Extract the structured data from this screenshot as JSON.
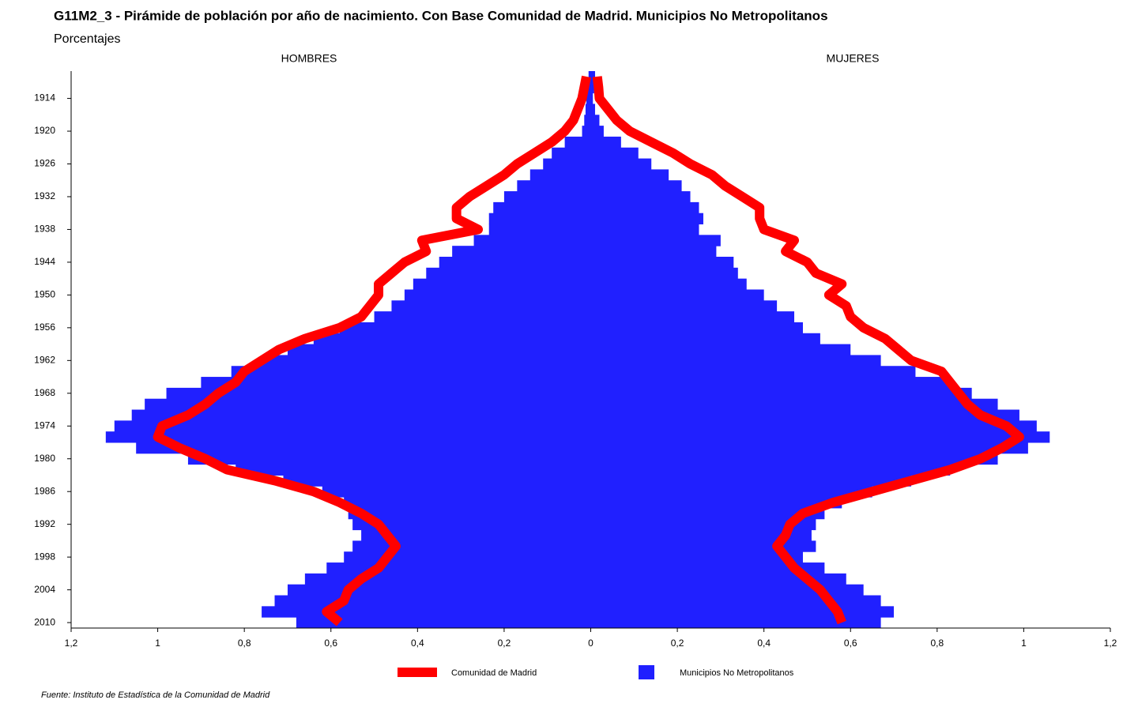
{
  "chart_data": {
    "type": "pyramid",
    "title": "G11M2_3 - Pirámide de población por año de nacimiento. Con Base Comunidad de Madrid.  Municipios No Metropolitanos",
    "subtitle": "Porcentajes",
    "side_labels": [
      "HOMBRES",
      "MUJERES"
    ],
    "source": "Fuente: Instituto de Estadística de la Comunidad de Madrid",
    "x": [
      1910,
      1912,
      1914,
      1916,
      1918,
      1920,
      1922,
      1924,
      1926,
      1928,
      1930,
      1932,
      1934,
      1936,
      1938,
      1940,
      1942,
      1944,
      1946,
      1948,
      1950,
      1952,
      1954,
      1956,
      1958,
      1960,
      1962,
      1964,
      1966,
      1968,
      1970,
      1972,
      1974,
      1976,
      1978,
      1980,
      1982,
      1984,
      1986,
      1988,
      1990,
      1992,
      1994,
      1996,
      1998,
      2000,
      2002,
      2004,
      2006,
      2008,
      2010
    ],
    "ylim": [
      1909,
      2011
    ],
    "yticks": [
      1914,
      1920,
      1926,
      1932,
      1938,
      1944,
      1950,
      1956,
      1962,
      1968,
      1974,
      1980,
      1986,
      1992,
      1998,
      2004,
      2010
    ],
    "xlim": [
      -1.2,
      1.2
    ],
    "xticks": [
      {
        "value": -1.2,
        "label": "1,2"
      },
      {
        "value": -1,
        "label": "1"
      },
      {
        "value": -0.8,
        "label": "0,8"
      },
      {
        "value": -0.6,
        "label": "0,6"
      },
      {
        "value": -0.4,
        "label": "0,4"
      },
      {
        "value": -0.2,
        "label": "0,2"
      },
      0,
      {
        "value": 0.2,
        "label": "0,2"
      },
      {
        "value": 0.4,
        "label": "0,4"
      },
      {
        "value": 0.6,
        "label": "0,6"
      },
      {
        "value": 0.8,
        "label": "0,8"
      },
      1,
      {
        "value": 1.2,
        "label": "1,2"
      }
    ],
    "series": [
      {
        "name": "Comunidad de Madrid",
        "color": "#ff0000",
        "style": "line",
        "hombres": [
          0.01,
          0.015,
          0.02,
          0.03,
          0.04,
          0.06,
          0.09,
          0.13,
          0.17,
          0.2,
          0.24,
          0.28,
          0.31,
          0.31,
          0.26,
          0.39,
          0.38,
          0.43,
          0.46,
          0.49,
          0.49,
          0.51,
          0.53,
          0.58,
          0.66,
          0.72,
          0.76,
          0.8,
          0.82,
          0.86,
          0.89,
          0.93,
          0.99,
          1.0,
          0.95,
          0.89,
          0.84,
          0.73,
          0.64,
          0.58,
          0.53,
          0.49,
          0.47,
          0.45,
          0.47,
          0.49,
          0.53,
          0.56,
          0.57,
          0.61,
          0.58
        ],
        "mujeres": [
          0.015,
          0.018,
          0.02,
          0.04,
          0.06,
          0.09,
          0.14,
          0.19,
          0.23,
          0.28,
          0.31,
          0.35,
          0.39,
          0.39,
          0.4,
          0.47,
          0.45,
          0.5,
          0.52,
          0.58,
          0.55,
          0.59,
          0.6,
          0.63,
          0.68,
          0.71,
          0.74,
          0.81,
          0.83,
          0.85,
          0.87,
          0.9,
          0.96,
          0.99,
          0.95,
          0.9,
          0.83,
          0.74,
          0.65,
          0.56,
          0.49,
          0.46,
          0.45,
          0.43,
          0.45,
          0.47,
          0.5,
          0.53,
          0.55,
          0.57,
          0.58
        ]
      },
      {
        "name": "Municipios No Metropolitanos",
        "color": "#2020ff",
        "style": "bar",
        "hombres": [
          0.005,
          0.008,
          0.01,
          0.012,
          0.015,
          0.02,
          0.06,
          0.09,
          0.11,
          0.14,
          0.17,
          0.2,
          0.225,
          0.235,
          0.235,
          0.27,
          0.32,
          0.35,
          0.38,
          0.41,
          0.43,
          0.46,
          0.5,
          0.58,
          0.64,
          0.7,
          0.76,
          0.83,
          0.9,
          0.98,
          1.03,
          1.06,
          1.1,
          1.12,
          1.05,
          0.93,
          0.82,
          0.71,
          0.62,
          0.57,
          0.56,
          0.55,
          0.53,
          0.55,
          0.57,
          0.61,
          0.66,
          0.7,
          0.73,
          0.76,
          0.68
        ],
        "mujeres": [
          0.01,
          0.008,
          0.005,
          0.01,
          0.02,
          0.03,
          0.07,
          0.11,
          0.14,
          0.18,
          0.21,
          0.23,
          0.25,
          0.26,
          0.25,
          0.3,
          0.29,
          0.33,
          0.34,
          0.36,
          0.4,
          0.43,
          0.47,
          0.49,
          0.53,
          0.6,
          0.67,
          0.75,
          0.83,
          0.88,
          0.94,
          0.99,
          1.03,
          1.06,
          1.01,
          0.94,
          0.83,
          0.74,
          0.65,
          0.58,
          0.54,
          0.52,
          0.51,
          0.52,
          0.49,
          0.54,
          0.59,
          0.63,
          0.67,
          0.7,
          0.67
        ]
      }
    ]
  }
}
